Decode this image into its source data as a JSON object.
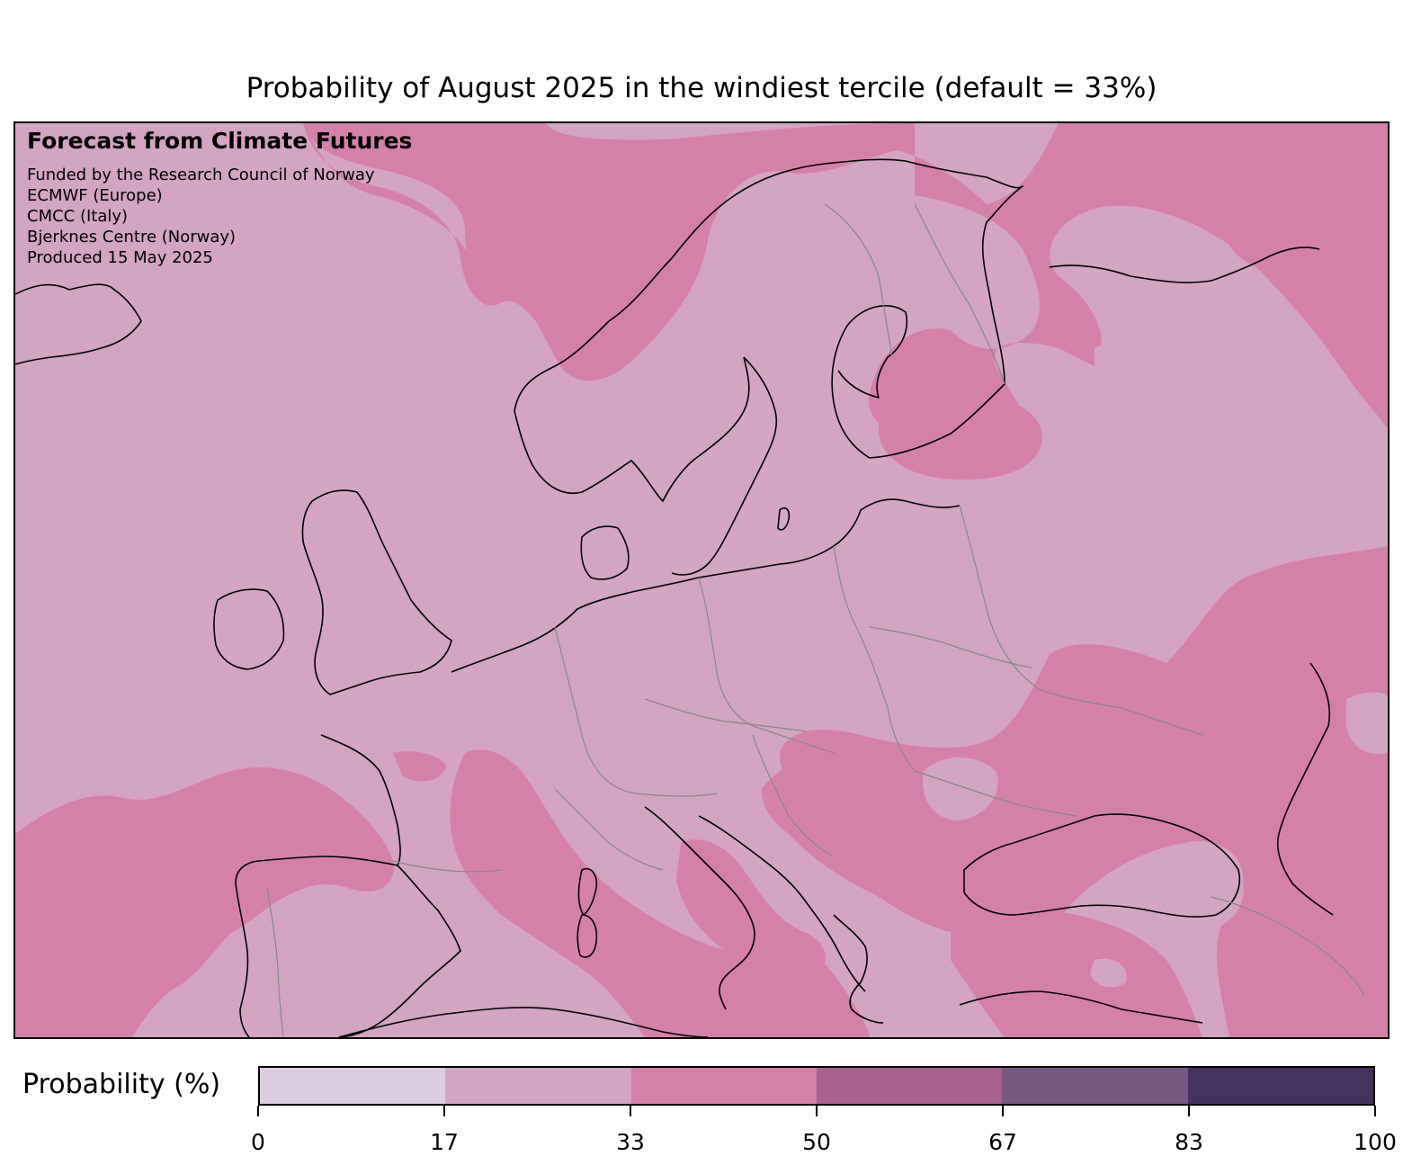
{
  "title": "Probability of August 2025 in the windiest tercile (default = 33%)",
  "info": {
    "heading": "Forecast from Climate Futures",
    "lines": [
      "Funded by the Research Council of Norway",
      "ECMWF (Europe)",
      "CMCC (Italy)",
      "Bjerknes Centre (Norway)",
      "Produced 15 May 2025"
    ]
  },
  "colorbar": {
    "label": "Probability (%)",
    "ticks": [
      "0",
      "17",
      "33",
      "50",
      "67",
      "83",
      "100"
    ],
    "tick_values": [
      0,
      17,
      33,
      50,
      67,
      83,
      100
    ],
    "colors": [
      "#dccde0",
      "#d4a4c3",
      "#d481aa",
      "#a86290",
      "#765883",
      "#45335e"
    ]
  },
  "map": {
    "region": "Europe",
    "background_color": "#d4a4c3",
    "highlight_color": "#d481aa",
    "coastline_color": "#000000",
    "border_color": "#888888"
  }
}
